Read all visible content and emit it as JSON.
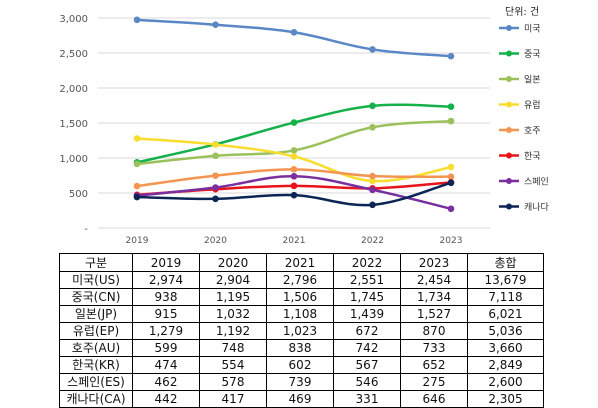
{
  "chart_data": {
    "type": "line",
    "unit_label": "단위: 건",
    "x": [
      "2019",
      "2020",
      "2021",
      "2022",
      "2023"
    ],
    "ylim": [
      0,
      3000
    ],
    "yticks": [
      "-",
      "500",
      "1,000",
      "1,500",
      "2,000",
      "2,500",
      "3,000"
    ],
    "legend_position": "right",
    "series": [
      {
        "name": "미국",
        "color": "#5b87c5",
        "values": [
          2974,
          2904,
          2796,
          2551,
          2454
        ]
      },
      {
        "name": "중국",
        "color": "#14b04a",
        "values": [
          938,
          1195,
          1506,
          1745,
          1734
        ]
      },
      {
        "name": "일본",
        "color": "#9bc15c",
        "values": [
          915,
          1032,
          1108,
          1439,
          1527
        ]
      },
      {
        "name": "유럽",
        "color": "#f9dd2e",
        "values": [
          1279,
          1192,
          1023,
          672,
          870
        ]
      },
      {
        "name": "호주",
        "color": "#f39551",
        "values": [
          599,
          748,
          838,
          742,
          733
        ]
      },
      {
        "name": "한국",
        "color": "#e8141b",
        "values": [
          474,
          554,
          602,
          567,
          652
        ]
      },
      {
        "name": "스페인",
        "color": "#7a2f9e",
        "values": [
          462,
          578,
          739,
          546,
          275
        ]
      },
      {
        "name": "캐나다",
        "color": "#0b2554",
        "values": [
          442,
          417,
          469,
          331,
          646
        ]
      }
    ]
  },
  "table": {
    "header": [
      "구분",
      "2019",
      "2020",
      "2021",
      "2022",
      "2023",
      "총합"
    ],
    "rows": [
      [
        "미국(US)",
        "2,974",
        "2,904",
        "2,796",
        "2,551",
        "2,454",
        "13,679"
      ],
      [
        "중국(CN)",
        "938",
        "1,195",
        "1,506",
        "1,745",
        "1,734",
        "7,118"
      ],
      [
        "일본(JP)",
        "915",
        "1,032",
        "1,108",
        "1,439",
        "1,527",
        "6,021"
      ],
      [
        "유럽(EP)",
        "1,279",
        "1,192",
        "1,023",
        "672",
        "870",
        "5,036"
      ],
      [
        "호주(AU)",
        "599",
        "748",
        "838",
        "742",
        "733",
        "3,660"
      ],
      [
        "한국(KR)",
        "474",
        "554",
        "602",
        "567",
        "652",
        "2,849"
      ],
      [
        "스페인(ES)",
        "462",
        "578",
        "739",
        "546",
        "275",
        "2,600"
      ],
      [
        "캐나다(CA)",
        "442",
        "417",
        "469",
        "331",
        "646",
        "2,305"
      ]
    ]
  }
}
